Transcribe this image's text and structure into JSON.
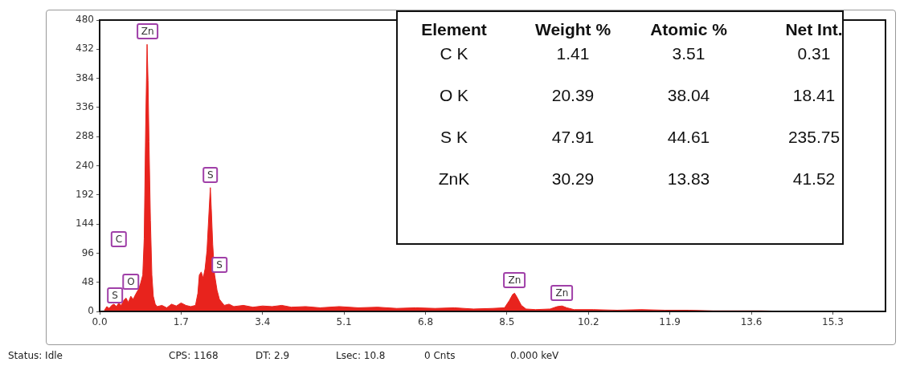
{
  "chart_data": [
    {
      "type": "area",
      "xlim": [
        0,
        16.4
      ],
      "ylim": [
        0,
        480
      ],
      "xticks": [
        {
          "value": 0,
          "label": "0.0"
        },
        1.7,
        3.4,
        5.1,
        6.8,
        8.5,
        10.2,
        11.9,
        13.6,
        15.3
      ],
      "yticks": [
        0,
        48,
        96,
        144,
        192,
        240,
        288,
        336,
        384,
        432,
        480
      ],
      "grid": false,
      "legend": false,
      "marker": "none",
      "series": [
        {
          "color": "#e8231d",
          "x": [
            0.1,
            0.15,
            0.2,
            0.25,
            0.3,
            0.35,
            0.4,
            0.45,
            0.5,
            0.55,
            0.6,
            0.65,
            0.7,
            0.75,
            0.8,
            0.85,
            0.9,
            0.93,
            0.96,
            0.99,
            1.01,
            1.03,
            1.06,
            1.09,
            1.12,
            1.16,
            1.2,
            1.3,
            1.4,
            1.5,
            1.6,
            1.7,
            1.8,
            1.9,
            2.0,
            2.05,
            2.08,
            2.12,
            2.16,
            2.2,
            2.24,
            2.28,
            2.31,
            2.33,
            2.36,
            2.4,
            2.45,
            2.5,
            2.55,
            2.6,
            2.7,
            2.8,
            3.0,
            3.2,
            3.4,
            3.6,
            3.8,
            4.0,
            4.3,
            4.6,
            5.0,
            5.4,
            5.8,
            6.2,
            6.6,
            7.0,
            7.4,
            7.8,
            8.2,
            8.45,
            8.55,
            8.62,
            8.66,
            8.72,
            8.8,
            8.9,
            9.1,
            9.4,
            9.55,
            9.65,
            9.75,
            9.9,
            10.3,
            10.8,
            11.3,
            11.8,
            12.3,
            12.8,
            13.3,
            13.8,
            14.5
          ],
          "values": [
            2,
            8,
            5,
            10,
            12,
            8,
            14,
            10,
            18,
            22,
            15,
            25,
            20,
            28,
            35,
            45,
            60,
            120,
            300,
            440,
            380,
            280,
            150,
            60,
            25,
            12,
            8,
            10,
            6,
            12,
            9,
            14,
            10,
            8,
            10,
            30,
            60,
            65,
            55,
            70,
            100,
            160,
            204,
            170,
            110,
            60,
            35,
            20,
            15,
            10,
            12,
            8,
            10,
            7,
            9,
            8,
            10,
            7,
            8,
            6,
            8,
            6,
            7,
            5,
            6,
            5,
            6,
            4,
            5,
            6,
            18,
            28,
            30,
            22,
            10,
            4,
            3,
            4,
            8,
            9,
            6,
            3,
            3,
            2,
            3,
            2,
            2,
            1,
            1,
            1,
            0
          ]
        }
      ],
      "annotations": [
        {
          "text": "Zn",
          "x": 1.0,
          "y": 440
        },
        {
          "text": "S",
          "x": 2.31,
          "y": 204
        },
        {
          "text": "S",
          "x": 2.5,
          "y": 55
        },
        {
          "text": "Zn",
          "x": 8.66,
          "y": 30
        },
        {
          "text": "Zn",
          "x": 9.65,
          "y": 9
        },
        "C",
        "O",
        "S",
        "Status: Idle",
        "CPS: 1168",
        "DT: 2.9",
        "Lsec: 10.8",
        "0 Cnts",
        "0.000 keV"
      ]
    },
    {
      "type": "other",
      "annotations": [
        "Element",
        "Weight %",
        "Atomic %",
        "Net Int.",
        "C K",
        "1.41",
        "3.51",
        "0.31",
        "O K",
        "20.39",
        "38.04",
        "18.41",
        "S K",
        "47.91",
        "44.61",
        "235.75",
        "ZnK",
        "30.29",
        "13.83",
        "41.52"
      ]
    }
  ]
}
